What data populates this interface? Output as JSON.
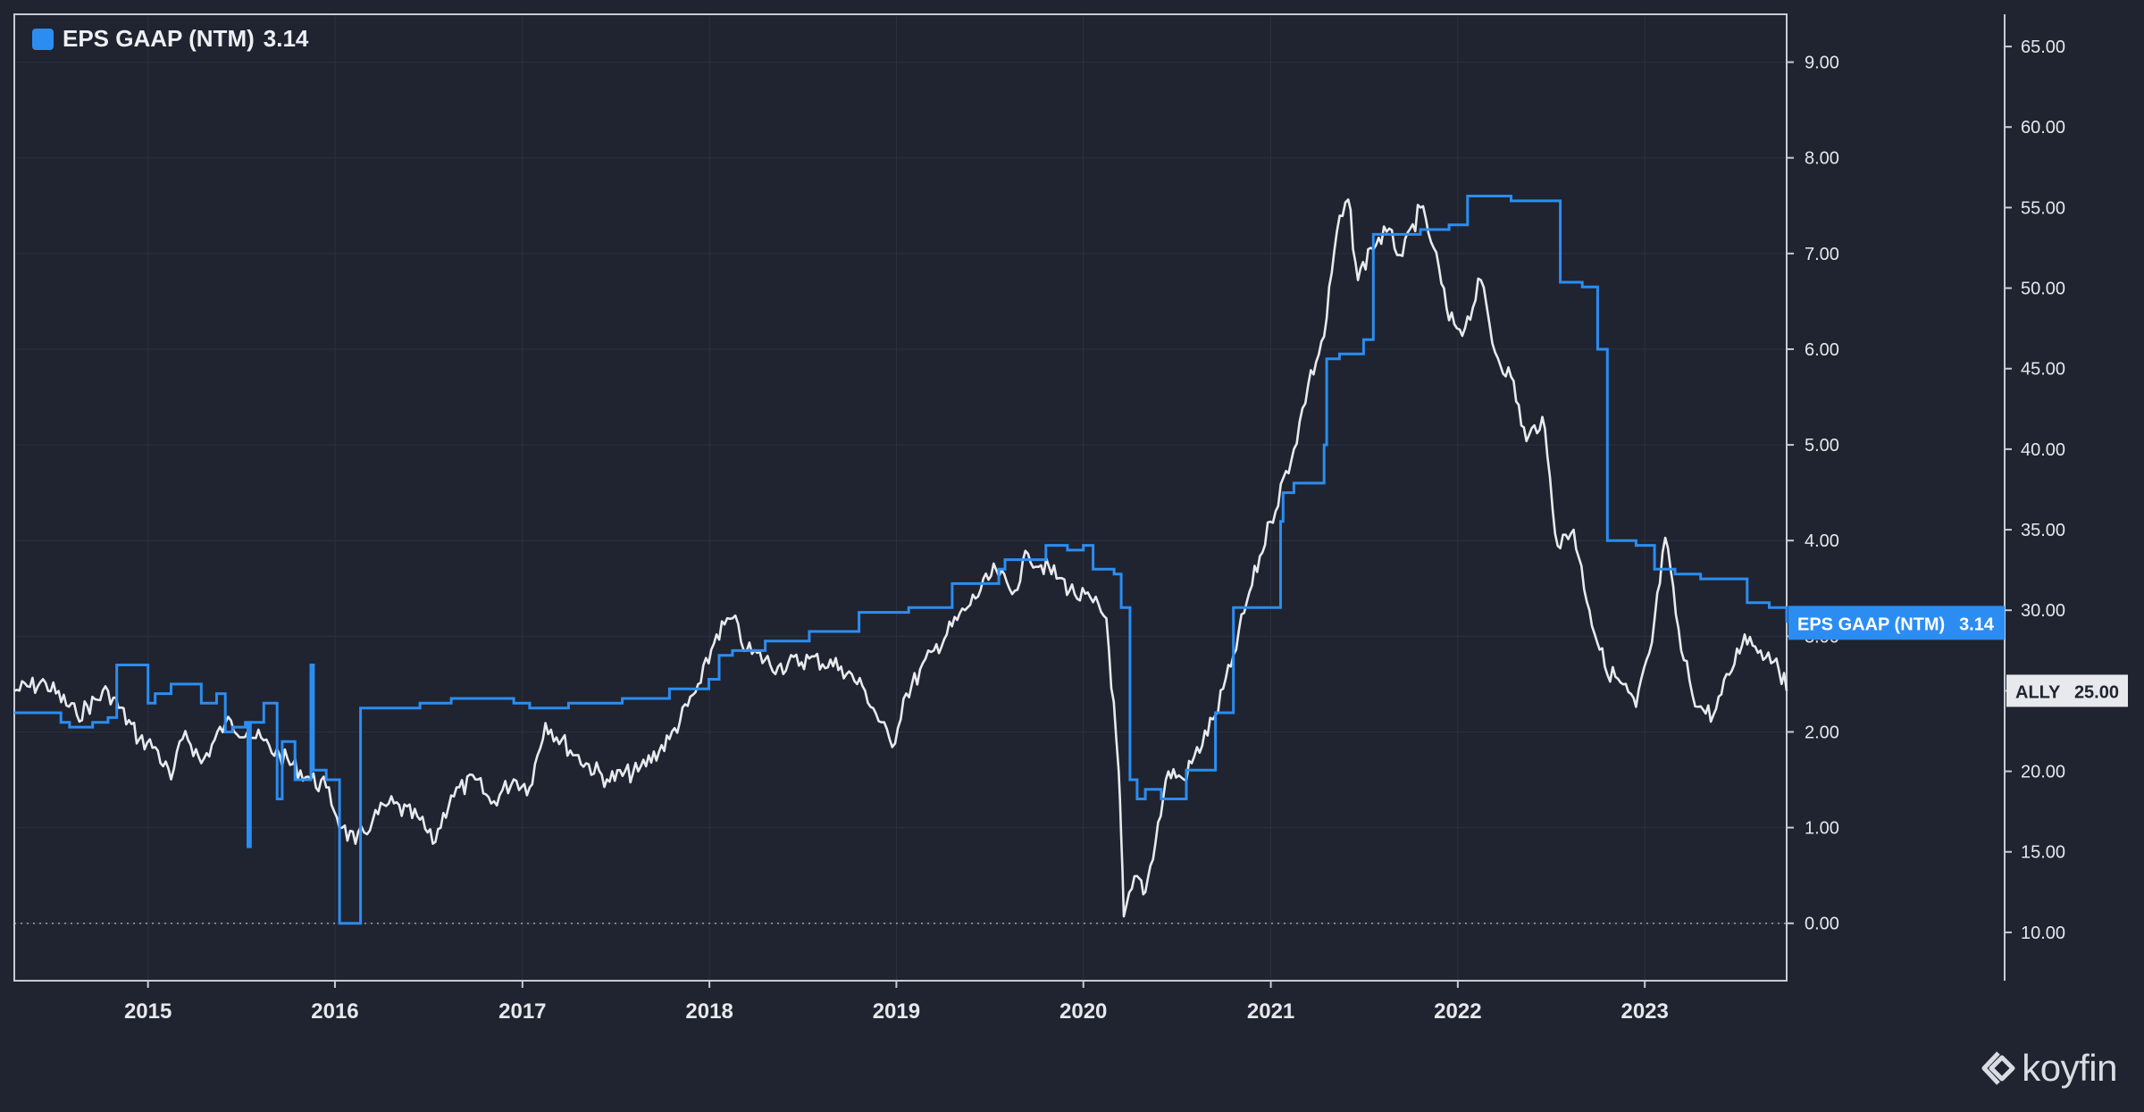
{
  "legend": {
    "label": "EPS GAAP (NTM)",
    "value": "3.14",
    "swatch_color": "#2b8df2"
  },
  "brand": {
    "name": "koyfin",
    "icon": "koyfin-logo-icon"
  },
  "colors": {
    "background": "#1f2430",
    "eps_line": "#2b8df2",
    "price_line": "#e8eaee",
    "grid": "#2b313d",
    "frame": "#c8ccd3"
  },
  "chart_data": {
    "type": "line",
    "x_tick_labels": [
      "2015",
      "2016",
      "2017",
      "2018",
      "2019",
      "2020",
      "2021",
      "2022",
      "2023"
    ],
    "x_range": [
      "2014-04-15",
      "2023-10-05"
    ],
    "left_axis": {
      "name": "EPS GAAP (NTM)",
      "ticks": [
        "0.00",
        "1.00",
        "2.00",
        "3.00",
        "4.00",
        "5.00",
        "6.00",
        "7.00",
        "8.00",
        "9.00"
      ],
      "range": [
        -0.6,
        9.5
      ]
    },
    "right_axis": {
      "name": "ALLY",
      "ticks": [
        "10.00",
        "15.00",
        "20.00",
        "25.00",
        "30.00",
        "35.00",
        "40.00",
        "45.00",
        "50.00",
        "55.00",
        "60.00",
        "65.00"
      ],
      "range": [
        7.0,
        67.0
      ]
    },
    "zero_line": 0,
    "grid": true,
    "legend_position": "top-left",
    "series": [
      {
        "name": "EPS GAAP (NTM)",
        "axis": "left",
        "last_label": "EPS GAAP (NTM)",
        "last_value": "3.14",
        "points": [
          [
            "2014-04-15",
            2.2
          ],
          [
            "2014-07-15",
            2.1
          ],
          [
            "2014-08-01",
            2.05
          ],
          [
            "2014-09-15",
            2.1
          ],
          [
            "2014-10-15",
            2.15
          ],
          [
            "2014-11-01",
            2.7
          ],
          [
            "2014-12-15",
            2.7
          ],
          [
            "2015-01-01",
            2.3
          ],
          [
            "2015-01-15",
            2.4
          ],
          [
            "2015-02-15",
            2.5
          ],
          [
            "2015-03-15",
            2.5
          ],
          [
            "2015-04-15",
            2.3
          ],
          [
            "2015-05-15",
            2.4
          ],
          [
            "2015-06-01",
            2.0
          ],
          [
            "2015-06-15",
            2.05
          ],
          [
            "2015-07-10",
            2.1
          ],
          [
            "2015-07-15",
            0.8
          ],
          [
            "2015-07-20",
            2.1
          ],
          [
            "2015-08-15",
            2.3
          ],
          [
            "2015-09-01",
            2.3
          ],
          [
            "2015-09-10",
            1.3
          ],
          [
            "2015-09-20",
            1.9
          ],
          [
            "2015-10-15",
            1.5
          ],
          [
            "2015-11-15",
            2.7
          ],
          [
            "2015-11-20",
            1.6
          ],
          [
            "2015-12-15",
            1.5
          ],
          [
            "2016-01-01",
            1.5
          ],
          [
            "2016-01-10",
            0.0
          ],
          [
            "2016-02-10",
            0.0
          ],
          [
            "2016-02-20",
            2.25
          ],
          [
            "2016-06-15",
            2.3
          ],
          [
            "2016-08-15",
            2.35
          ],
          [
            "2016-11-01",
            2.35
          ],
          [
            "2016-12-15",
            2.3
          ],
          [
            "2017-01-15",
            2.25
          ],
          [
            "2017-03-01",
            2.25
          ],
          [
            "2017-04-01",
            2.3
          ],
          [
            "2017-06-01",
            2.3
          ],
          [
            "2017-07-15",
            2.35
          ],
          [
            "2017-10-15",
            2.45
          ],
          [
            "2017-12-31",
            2.55
          ],
          [
            "2018-01-20",
            2.8
          ],
          [
            "2018-02-15",
            2.85
          ],
          [
            "2018-04-01",
            2.85
          ],
          [
            "2018-04-20",
            2.95
          ],
          [
            "2018-07-15",
            3.05
          ],
          [
            "2018-09-15",
            3.05
          ],
          [
            "2018-10-20",
            3.25
          ],
          [
            "2019-01-25",
            3.3
          ],
          [
            "2019-04-20",
            3.55
          ],
          [
            "2019-07-20",
            3.7
          ],
          [
            "2019-08-01",
            3.8
          ],
          [
            "2019-10-20",
            3.95
          ],
          [
            "2019-12-01",
            3.9
          ],
          [
            "2020-01-01",
            3.95
          ],
          [
            "2020-01-20",
            3.7
          ],
          [
            "2020-03-01",
            3.65
          ],
          [
            "2020-03-15",
            3.3
          ],
          [
            "2020-04-01",
            1.5
          ],
          [
            "2020-04-15",
            1.3
          ],
          [
            "2020-05-01",
            1.4
          ],
          [
            "2020-06-01",
            1.3
          ],
          [
            "2020-07-20",
            1.6
          ],
          [
            "2020-08-15",
            1.6
          ],
          [
            "2020-09-15",
            2.2
          ],
          [
            "2020-10-20",
            3.3
          ],
          [
            "2020-12-01",
            3.3
          ],
          [
            "2021-01-20",
            4.2
          ],
          [
            "2021-01-25",
            4.5
          ],
          [
            "2021-02-15",
            4.6
          ],
          [
            "2021-04-15",
            5.0
          ],
          [
            "2021-04-20",
            5.9
          ],
          [
            "2021-05-15",
            5.95
          ],
          [
            "2021-07-01",
            6.1
          ],
          [
            "2021-07-20",
            7.2
          ],
          [
            "2021-09-15",
            7.2
          ],
          [
            "2021-10-20",
            7.25
          ],
          [
            "2021-12-15",
            7.3
          ],
          [
            "2022-01-20",
            7.6
          ],
          [
            "2022-03-01",
            7.6
          ],
          [
            "2022-04-15",
            7.55
          ],
          [
            "2022-06-01",
            7.55
          ],
          [
            "2022-07-20",
            6.7
          ],
          [
            "2022-09-01",
            6.65
          ],
          [
            "2022-10-01",
            6.0
          ],
          [
            "2022-10-20",
            4.0
          ],
          [
            "2022-12-15",
            3.95
          ],
          [
            "2023-01-20",
            3.7
          ],
          [
            "2023-03-01",
            3.65
          ],
          [
            "2023-04-20",
            3.6
          ],
          [
            "2023-07-20",
            3.35
          ],
          [
            "2023-09-01",
            3.3
          ],
          [
            "2023-10-05",
            3.14
          ]
        ]
      },
      {
        "name": "ALLY",
        "axis": "right",
        "last_label": "ALLY",
        "last_value": "25.00",
        "points": [
          [
            "2014-04-15",
            25.0
          ],
          [
            "2014-06-15",
            25.5
          ],
          [
            "2014-08-15",
            23.5
          ],
          [
            "2014-10-15",
            25.0
          ],
          [
            "2014-12-15",
            22.0
          ],
          [
            "2015-01-15",
            21.5
          ],
          [
            "2015-02-15",
            19.5
          ],
          [
            "2015-03-15",
            22.5
          ],
          [
            "2015-04-15",
            20.5
          ],
          [
            "2015-06-01",
            23.0
          ],
          [
            "2015-07-15",
            22.5
          ],
          [
            "2015-09-15",
            21.0
          ],
          [
            "2015-11-15",
            19.5
          ],
          [
            "2015-12-15",
            19.0
          ],
          [
            "2016-01-15",
            16.5
          ],
          [
            "2016-02-10",
            15.5
          ],
          [
            "2016-03-15",
            17.0
          ],
          [
            "2016-04-15",
            18.0
          ],
          [
            "2016-06-15",
            17.0
          ],
          [
            "2016-07-10",
            15.5
          ],
          [
            "2016-08-15",
            18.5
          ],
          [
            "2016-10-01",
            19.5
          ],
          [
            "2016-11-01",
            18.0
          ],
          [
            "2016-12-15",
            19.5
          ],
          [
            "2017-01-15",
            19.0
          ],
          [
            "2017-02-15",
            23.0
          ],
          [
            "2017-04-15",
            21.0
          ],
          [
            "2017-06-15",
            19.5
          ],
          [
            "2017-08-15",
            20.0
          ],
          [
            "2017-10-15",
            22.0
          ],
          [
            "2017-12-15",
            25.5
          ],
          [
            "2018-01-15",
            28.5
          ],
          [
            "2018-02-15",
            29.5
          ],
          [
            "2018-03-15",
            27.5
          ],
          [
            "2018-05-15",
            26.5
          ],
          [
            "2018-07-15",
            27.0
          ],
          [
            "2018-09-15",
            26.5
          ],
          [
            "2018-11-01",
            25.0
          ],
          [
            "2018-12-24",
            21.5
          ],
          [
            "2019-01-15",
            24.5
          ],
          [
            "2019-03-15",
            27.5
          ],
          [
            "2019-05-15",
            30.0
          ],
          [
            "2019-07-15",
            32.5
          ],
          [
            "2019-08-15",
            31.0
          ],
          [
            "2019-09-15",
            33.5
          ],
          [
            "2019-11-15",
            32.0
          ],
          [
            "2019-12-15",
            31.0
          ],
          [
            "2020-01-20",
            30.5
          ],
          [
            "2020-02-15",
            29.5
          ],
          [
            "2020-03-10",
            20.0
          ],
          [
            "2020-03-20",
            11.0
          ],
          [
            "2020-04-15",
            13.5
          ],
          [
            "2020-05-01",
            12.5
          ],
          [
            "2020-06-15",
            20.0
          ],
          [
            "2020-07-15",
            19.5
          ],
          [
            "2020-09-15",
            23.5
          ],
          [
            "2020-10-15",
            26.5
          ],
          [
            "2020-11-15",
            30.5
          ],
          [
            "2020-12-31",
            35.5
          ],
          [
            "2021-02-15",
            40.0
          ],
          [
            "2021-03-15",
            44.0
          ],
          [
            "2021-04-15",
            47.0
          ],
          [
            "2021-05-10",
            53.5
          ],
          [
            "2021-06-01",
            55.5
          ],
          [
            "2021-06-20",
            50.5
          ],
          [
            "2021-07-15",
            52.5
          ],
          [
            "2021-08-15",
            53.5
          ],
          [
            "2021-09-15",
            52.0
          ],
          [
            "2021-10-20",
            55.0
          ],
          [
            "2021-11-15",
            52.5
          ],
          [
            "2021-12-15",
            48.0
          ],
          [
            "2022-01-15",
            47.5
          ],
          [
            "2022-02-15",
            50.5
          ],
          [
            "2022-03-15",
            46.0
          ],
          [
            "2022-04-15",
            44.5
          ],
          [
            "2022-05-15",
            40.5
          ],
          [
            "2022-06-15",
            42.0
          ],
          [
            "2022-07-15",
            34.0
          ],
          [
            "2022-08-15",
            35.0
          ],
          [
            "2022-09-15",
            30.0
          ],
          [
            "2022-10-15",
            26.5
          ],
          [
            "2022-11-15",
            25.5
          ],
          [
            "2022-12-15",
            24.0
          ],
          [
            "2023-01-15",
            28.0
          ],
          [
            "2023-02-10",
            34.5
          ],
          [
            "2023-03-13",
            27.5
          ],
          [
            "2023-04-15",
            24.0
          ],
          [
            "2023-05-15",
            23.5
          ],
          [
            "2023-06-15",
            26.0
          ],
          [
            "2023-07-15",
            28.5
          ],
          [
            "2023-08-15",
            27.5
          ],
          [
            "2023-09-15",
            27.0
          ],
          [
            "2023-10-05",
            25.0
          ]
        ]
      }
    ]
  }
}
